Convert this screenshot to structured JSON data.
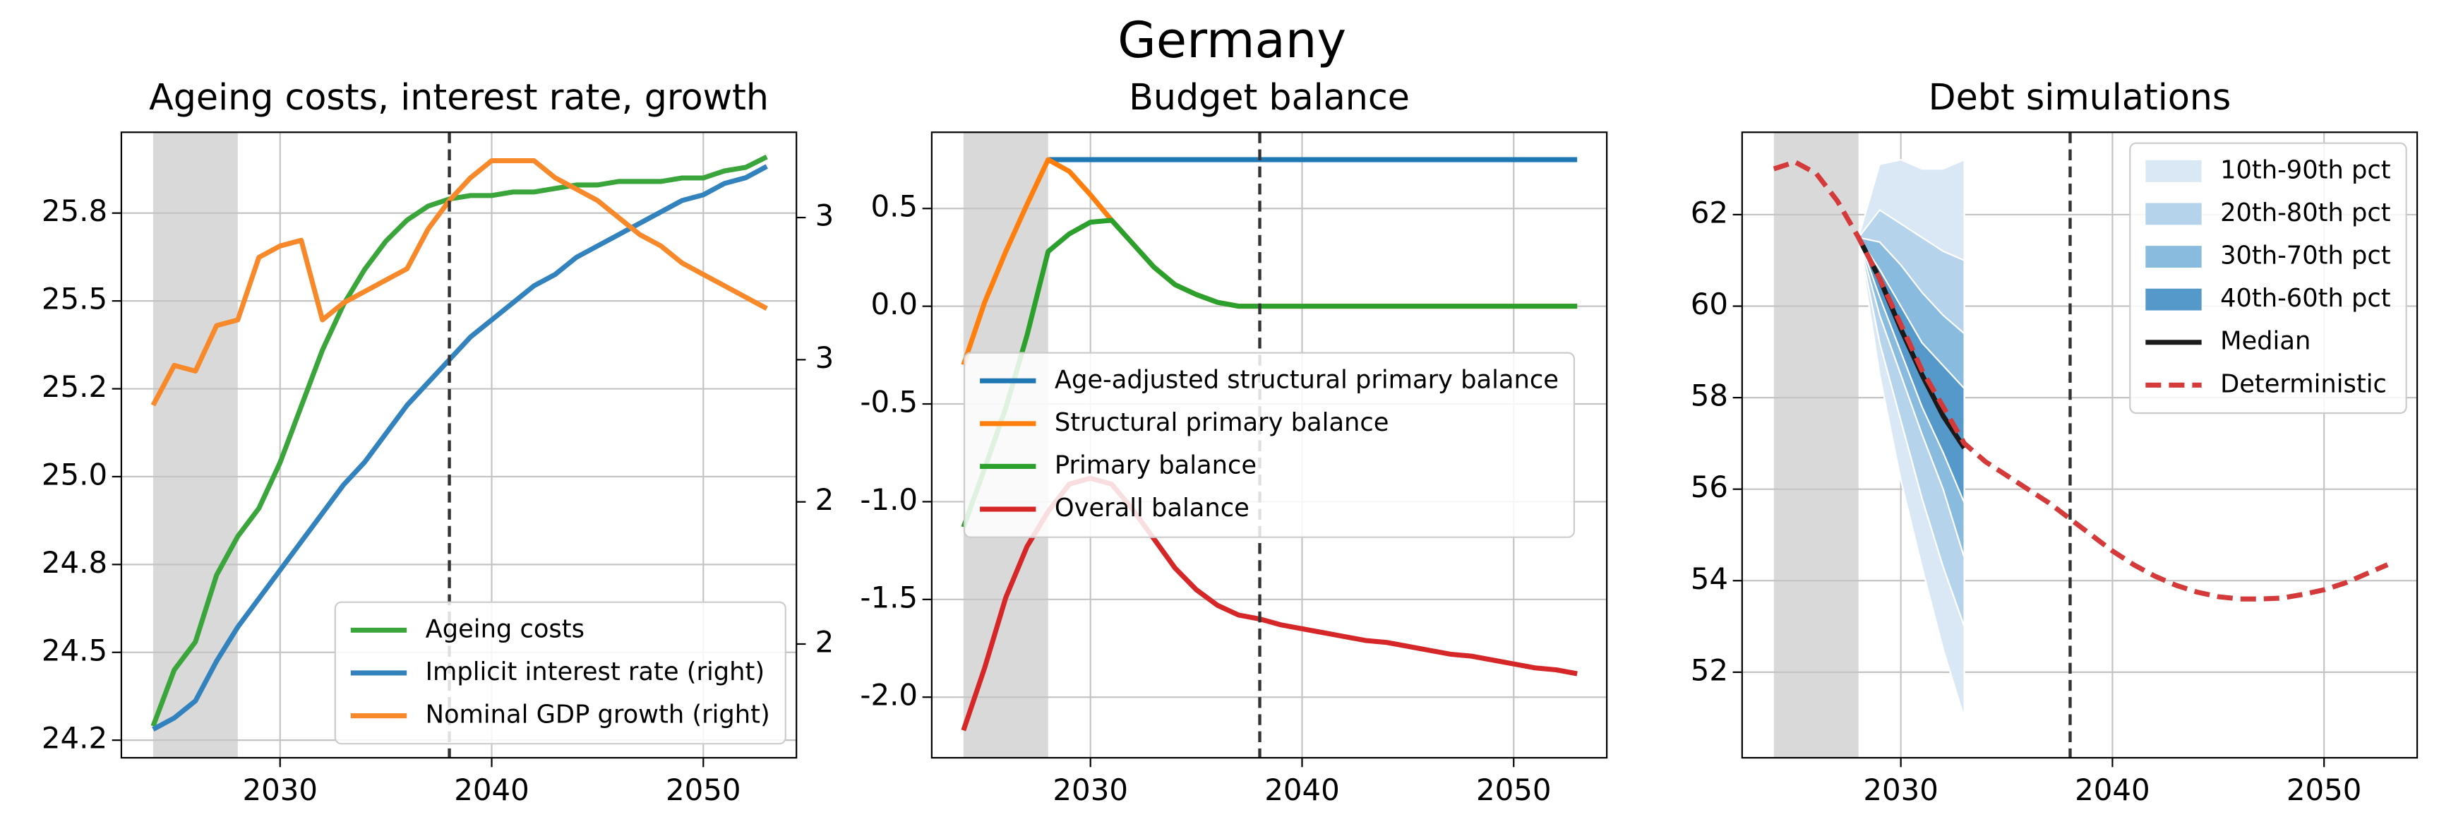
{
  "title": "Germany",
  "chart_data": [
    {
      "type": "dual_axis_line",
      "title": "Ageing costs, interest rate, growth",
      "x": [
        2024,
        2025,
        2026,
        2027,
        2028,
        2029,
        2030,
        2031,
        2032,
        2033,
        2034,
        2035,
        2036,
        2037,
        2038,
        2039,
        2040,
        2041,
        2042,
        2043,
        2044,
        2045,
        2046,
        2047,
        2048,
        2049,
        2050,
        2051,
        2052,
        2053
      ],
      "xlim": [
        2022.5,
        2054.4
      ],
      "xticks": [
        2030,
        2040,
        2050
      ],
      "ylim": [
        24.2,
        25.98
      ],
      "yticks": [
        {
          "value": 24.25,
          "label": "24.2"
        },
        24.5,
        {
          "value": 24.75,
          "label": "24.8"
        },
        {
          "value": 25.0,
          "label": "25.0"
        },
        {
          "value": 25.25,
          "label": "25.2"
        },
        25.5,
        {
          "value": 25.75,
          "label": "25.8"
        }
      ],
      "y2lim": [
        2.05,
        3.15
      ],
      "y2ticks": [
        {
          "value": 2.25,
          "label": "2"
        },
        {
          "value": 2.5,
          "label": "2"
        },
        {
          "value": 2.75,
          "label": "3"
        },
        {
          "value": 3.0,
          "label": "3"
        }
      ],
      "grid": true,
      "legend": "lower right",
      "shaded_span": [
        2024,
        2028
      ],
      "vline": 2038,
      "series": [
        {
          "name": "Ageing costs",
          "color": "#3aa53a",
          "values": [
            24.29,
            24.45,
            24.53,
            24.72,
            24.83,
            24.91,
            25.04,
            25.2,
            25.36,
            25.49,
            25.59,
            25.67,
            25.73,
            25.77,
            25.79,
            25.8,
            25.8,
            25.81,
            25.81,
            25.82,
            25.83,
            25.83,
            25.84,
            25.84,
            25.84,
            25.85,
            25.85,
            25.87,
            25.88,
            25.91
          ]
        },
        {
          "name": "Implicit interest rate (right)",
          "color": "#3282bd",
          "axis": "y2",
          "values": [
            2.1,
            2.12,
            2.15,
            2.22,
            2.28,
            2.33,
            2.38,
            2.43,
            2.48,
            2.53,
            2.57,
            2.62,
            2.67,
            2.71,
            2.75,
            2.79,
            2.82,
            2.85,
            2.88,
            2.9,
            2.93,
            2.95,
            2.97,
            2.99,
            3.01,
            3.03,
            3.04,
            3.06,
            3.07,
            3.09
          ]
        },
        {
          "name": "Nominal GDP growth (right)",
          "color": "#f7892a",
          "axis": "y2",
          "values": [
            2.67,
            2.74,
            2.73,
            2.81,
            2.82,
            2.93,
            2.95,
            2.96,
            2.82,
            2.85,
            2.87,
            2.89,
            2.91,
            2.98,
            3.03,
            3.07,
            3.1,
            3.1,
            3.1,
            3.07,
            3.05,
            3.03,
            3,
            2.97,
            2.95,
            2.92,
            2.9,
            2.88,
            2.86,
            2.84
          ]
        }
      ]
    },
    {
      "type": "line",
      "title": "Budget balance",
      "x": [
        2024,
        2025,
        2026,
        2027,
        2028,
        2029,
        2030,
        2031,
        2032,
        2033,
        2034,
        2035,
        2036,
        2037,
        2038,
        2039,
        2040,
        2041,
        2042,
        2043,
        2044,
        2045,
        2046,
        2047,
        2048,
        2049,
        2050,
        2051,
        2052,
        2053
      ],
      "xlim": [
        2022.5,
        2054.4
      ],
      "xticks": [
        2030,
        2040,
        2050
      ],
      "ylim": [
        -2.31,
        0.89
      ],
      "yticks": [
        {
          "value": -2,
          "label": "-2.0"
        },
        -1.5,
        {
          "value": -1,
          "label": "-1.0"
        },
        -0.5,
        {
          "value": 0,
          "label": "0.0"
        },
        0.5
      ],
      "grid": true,
      "legend": "center",
      "shaded_span": [
        2024,
        2028
      ],
      "vline": 2038,
      "series": [
        {
          "name": "Age-adjusted structural primary balance",
          "color": "#1f77b4",
          "values": [
            null,
            null,
            null,
            null,
            0.75,
            0.75,
            0.75,
            0.75,
            0.75,
            0.75,
            0.75,
            0.75,
            0.75,
            0.75,
            0.75,
            0.75,
            0.75,
            0.75,
            0.75,
            0.75,
            0.75,
            0.75,
            0.75,
            0.75,
            0.75,
            0.75,
            0.75,
            0.75,
            0.75,
            0.75
          ]
        },
        {
          "name": "Structural primary balance",
          "color": "#ff7f0e",
          "values": [
            -0.3,
            0.02,
            0.28,
            0.52,
            0.75,
            0.69,
            0.57,
            0.44,
            0.32,
            0.2,
            0.11,
            0.06,
            0.02,
            0,
            0,
            0,
            0,
            0,
            0,
            0,
            0,
            0,
            0,
            0,
            0,
            0,
            0,
            0,
            0,
            0
          ]
        },
        {
          "name": "Primary balance",
          "color": "#2ca02c",
          "values": [
            -1.13,
            -0.83,
            -0.52,
            -0.15,
            0.28,
            0.37,
            0.43,
            0.44,
            0.32,
            0.2,
            0.11,
            0.06,
            0.02,
            0,
            0,
            0,
            0,
            0,
            0,
            0,
            0,
            0,
            0,
            0,
            0,
            0,
            0,
            0,
            0,
            0
          ]
        },
        {
          "name": "Overall balance",
          "color": "#d62728",
          "values": [
            -2.17,
            -1.85,
            -1.49,
            -1.23,
            -1.05,
            -0.91,
            -0.88,
            -0.91,
            -1.04,
            -1.19,
            -1.34,
            -1.45,
            -1.53,
            -1.58,
            -1.6,
            -1.63,
            -1.65,
            -1.67,
            -1.69,
            -1.71,
            -1.72,
            -1.74,
            -1.76,
            -1.78,
            -1.79,
            -1.81,
            -1.83,
            -1.85,
            -1.86,
            -1.88
          ]
        }
      ]
    },
    {
      "type": "line",
      "title": "Debt simulations",
      "x": [
        2024,
        2025,
        2026,
        2027,
        2028,
        2029,
        2030,
        2031,
        2032,
        2033,
        2034,
        2035,
        2036,
        2037,
        2038,
        2039,
        2040,
        2041,
        2042,
        2043,
        2044,
        2045,
        2046,
        2047,
        2048,
        2049,
        2050,
        2051,
        2052,
        2053
      ],
      "xlim": [
        2022.5,
        2054.4
      ],
      "xticks": [
        2030,
        2040,
        2050
      ],
      "ylim": [
        50.13,
        63.8
      ],
      "yticks": [
        52,
        54,
        56,
        58,
        60,
        62
      ],
      "grid": true,
      "legend": "upper right",
      "shaded_span": [
        2024,
        2028
      ],
      "vline": 2038,
      "bands": [
        {
          "name": "10th-90th pct",
          "color": "#dae8f5",
          "lower": [
            null,
            null,
            null,
            null,
            61.5,
            58.5,
            56.2,
            54.3,
            52.5,
            51.0,
            null,
            null,
            null,
            null,
            null,
            null,
            null,
            null,
            null,
            null,
            null,
            null,
            null,
            null,
            null,
            null,
            null,
            null,
            null,
            null
          ],
          "upper": [
            null,
            null,
            null,
            null,
            61.5,
            63.1,
            63.2,
            63.0,
            63.0,
            63.2,
            null,
            null,
            null,
            null,
            null,
            null,
            null,
            null,
            null,
            null,
            null,
            null,
            null,
            null,
            null,
            null,
            null,
            null,
            null,
            null
          ]
        },
        {
          "name": "20th-80th pct",
          "color": "#b6d3ec",
          "lower": [
            null,
            null,
            null,
            null,
            61.5,
            59.2,
            57.5,
            55.8,
            54.3,
            53.0,
            null,
            null,
            null,
            null,
            null,
            null,
            null,
            null,
            null,
            null,
            null,
            null,
            null,
            null,
            null,
            null,
            null,
            null,
            null,
            null
          ],
          "upper": [
            null,
            null,
            null,
            null,
            61.5,
            62.1,
            61.8,
            61.5,
            61.2,
            61.0,
            null,
            null,
            null,
            null,
            null,
            null,
            null,
            null,
            null,
            null,
            null,
            null,
            null,
            null,
            null,
            null,
            null,
            null,
            null,
            null
          ]
        },
        {
          "name": "30th-70th pct",
          "color": "#88bbdd",
          "lower": [
            null,
            null,
            null,
            null,
            61.5,
            59.8,
            58.5,
            57.2,
            56.0,
            54.5,
            null,
            null,
            null,
            null,
            null,
            null,
            null,
            null,
            null,
            null,
            null,
            null,
            null,
            null,
            null,
            null,
            null,
            null,
            null,
            null
          ],
          "upper": [
            null,
            null,
            null,
            null,
            61.5,
            61.4,
            60.9,
            60.3,
            59.8,
            59.4,
            null,
            null,
            null,
            null,
            null,
            null,
            null,
            null,
            null,
            null,
            null,
            null,
            null,
            null,
            null,
            null,
            null,
            null,
            null,
            null
          ]
        },
        {
          "name": "40th-60th pct",
          "color": "#5599cb",
          "lower": [
            null,
            null,
            null,
            null,
            61.5,
            60.2,
            59.0,
            57.8,
            56.8,
            55.7,
            null,
            null,
            null,
            null,
            null,
            null,
            null,
            null,
            null,
            null,
            null,
            null,
            null,
            null,
            null,
            null,
            null,
            null,
            null,
            null
          ],
          "upper": [
            null,
            null,
            null,
            null,
            61.5,
            60.8,
            60.0,
            59.2,
            58.7,
            58.2,
            null,
            null,
            null,
            null,
            null,
            null,
            null,
            null,
            null,
            null,
            null,
            null,
            null,
            null,
            null,
            null,
            null,
            null,
            null,
            null
          ]
        }
      ],
      "series": [
        {
          "name": "Median",
          "color": "#1a1a1a",
          "values": [
            null,
            null,
            null,
            null,
            61.5,
            60.6,
            59.5,
            58.5,
            57.6,
            56.9,
            null,
            null,
            null,
            null,
            null,
            null,
            null,
            null,
            null,
            null,
            null,
            null,
            null,
            null,
            null,
            null,
            null,
            null,
            null,
            null
          ]
        },
        {
          "name": "Deterministic",
          "color": "#d43a3a",
          "dash": true,
          "values": [
            63.0,
            63.15,
            62.9,
            62.3,
            61.5,
            60.6,
            59.6,
            58.6,
            57.8,
            57.0,
            56.6,
            56.3,
            56.0,
            55.7,
            55.35,
            55.0,
            54.65,
            54.35,
            54.1,
            53.9,
            53.75,
            53.65,
            53.6,
            53.6,
            53.62,
            53.7,
            53.8,
            53.95,
            54.15,
            54.35
          ]
        }
      ]
    }
  ]
}
